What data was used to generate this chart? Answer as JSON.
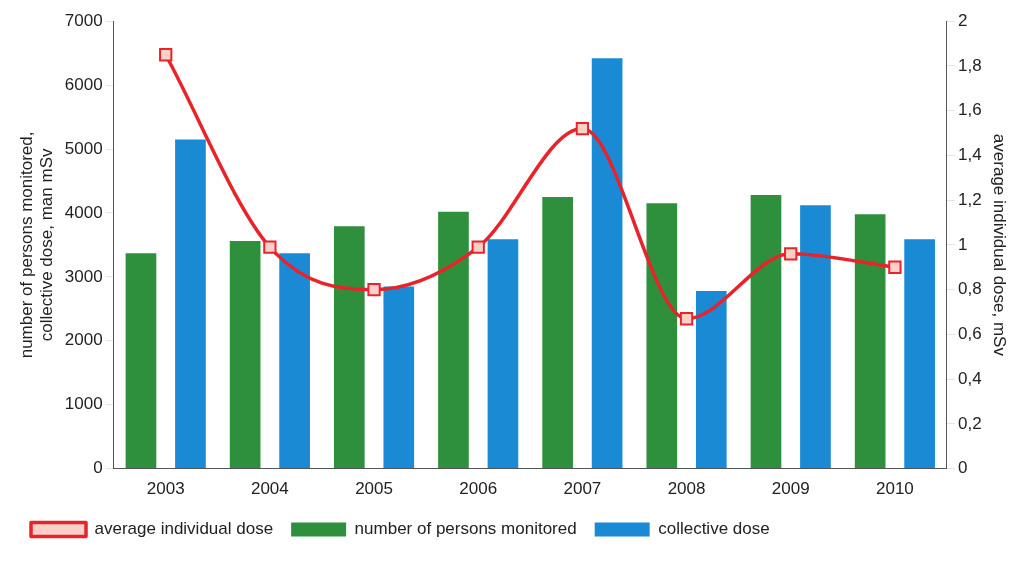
{
  "chart_data": {
    "type": "bar",
    "categories": [
      "2003",
      "2004",
      "2005",
      "2006",
      "2007",
      "2008",
      "2009",
      "2010"
    ],
    "ylabel": "number of persons monitored,\ncollective dose, man mSv",
    "y2label": "average individual dose, mSv",
    "series": [
      {
        "name": "number of persons monitored",
        "color": "#2e8f3c",
        "values": [
          3370,
          3560,
          3790,
          4020,
          4250,
          4150,
          4280,
          3980
        ]
      },
      {
        "name": "collective dose",
        "color": "#1a8ad4",
        "values": [
          5150,
          3370,
          2850,
          3590,
          6420,
          2780,
          4120,
          3590
        ]
      },
      {
        "name": "average individual dose",
        "type": "line",
        "axis": "y2",
        "color": "#e8242a",
        "marker": "square",
        "values": [
          1.85,
          0.99,
          0.8,
          0.99,
          1.52,
          0.67,
          0.96,
          0.9
        ]
      }
    ],
    "ylim": [
      0,
      7000
    ],
    "yticks": [
      0,
      1000,
      2000,
      3000,
      4000,
      5000,
      6000,
      7000
    ],
    "y2lim": [
      0,
      2
    ],
    "y2ticks": [
      0,
      {
        "value": 0.2,
        "label": "0,2"
      },
      {
        "value": 0.4,
        "label": "0,4"
      },
      {
        "value": 0.6,
        "label": "0,6"
      },
      {
        "value": 0.8,
        "label": "0,8"
      },
      1,
      {
        "value": 1.2,
        "label": "1,2"
      },
      {
        "value": 1.4,
        "label": "1,4"
      },
      {
        "value": 1.6,
        "label": "1,6"
      },
      {
        "value": 1.8,
        "label": "1,8"
      },
      2
    ],
    "grid": false,
    "legend": "bottom"
  }
}
